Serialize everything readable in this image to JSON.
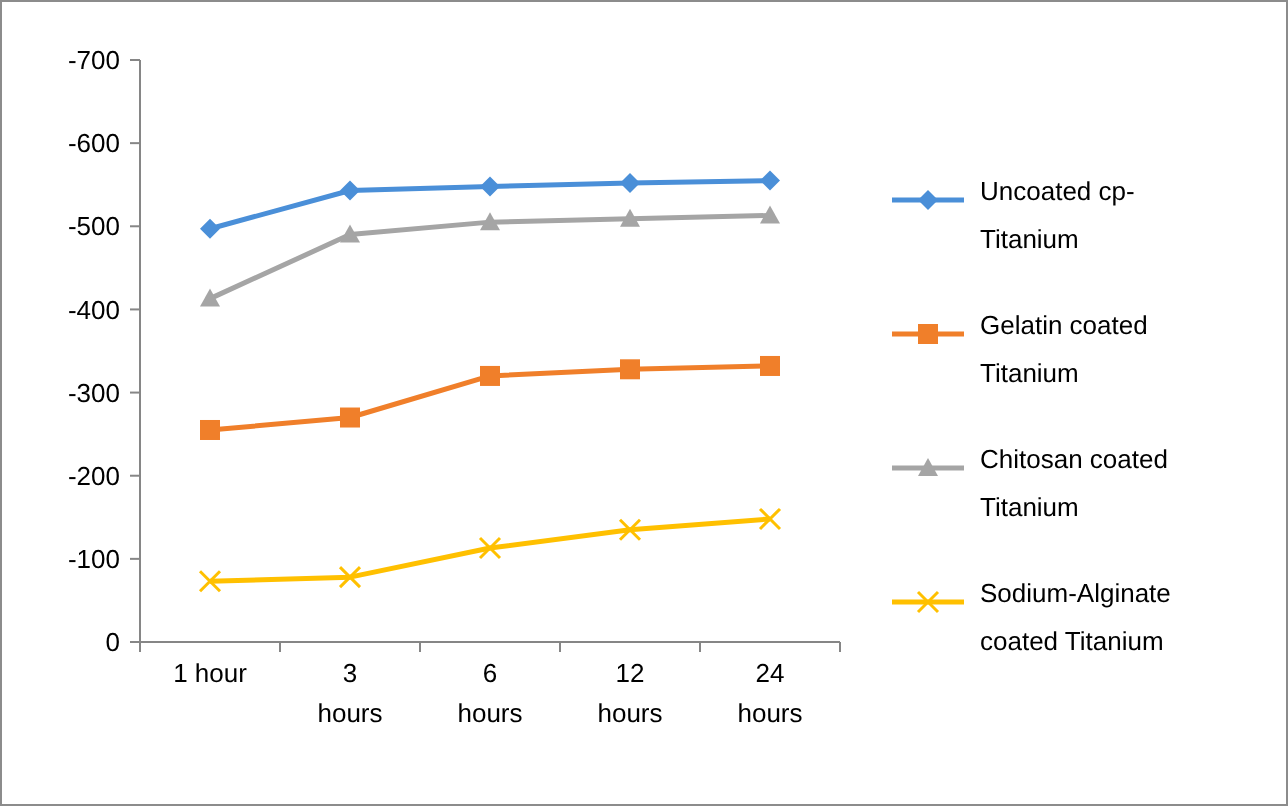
{
  "chart_data": {
    "type": "line",
    "categories": [
      "1 hour",
      "3 hours",
      "6 hours",
      "12 hours",
      "24 hours"
    ],
    "series": [
      {
        "name": "Uncoated cp-Titanium",
        "color": "#4a8fd8",
        "marker": "diamond",
        "values": [
          -497,
          -543,
          -548,
          -552,
          -555
        ]
      },
      {
        "name": "Gelatin coated Titanium",
        "color": "#f07f2a",
        "marker": "square",
        "values": [
          -255,
          -270,
          -320,
          -328,
          -332
        ]
      },
      {
        "name": "Chitosan coated Titanium",
        "color": "#a5a5a5",
        "marker": "triangle",
        "values": [
          -413,
          -490,
          -505,
          -509,
          -513
        ]
      },
      {
        "name": "Sodium-Alginate coated Titanium",
        "color": "#ffc000",
        "marker": "cross",
        "values": [
          -73,
          -78,
          -113,
          -135,
          -148
        ]
      }
    ],
    "ylim": [
      0,
      -700
    ],
    "yticks": [
      0,
      -100,
      -200,
      -300,
      -400,
      -500,
      -600,
      -700
    ],
    "grid": false,
    "legend": "right"
  }
}
